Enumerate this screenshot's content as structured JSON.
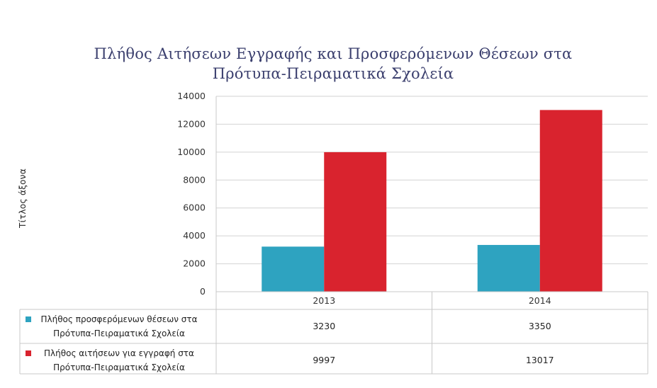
{
  "chart_data": {
    "type": "bar",
    "title_lines": [
      "Πλήθος Αιτήσεων Εγγραφής και Προσφερόμενων Θέσεων στα",
      "Πρότυπα-Πειραματικά Σχολεία"
    ],
    "ylabel": "Τίτλος άξονα",
    "xlabel": "",
    "categories": [
      "2013",
      "2014"
    ],
    "ylim": [
      0,
      14000
    ],
    "yticks": [
      "0",
      "2000",
      "4000",
      "6000",
      "8000",
      "10000",
      "12000",
      "14000"
    ],
    "grid": true,
    "legend_placement": "data-table",
    "series": [
      {
        "name_lines": [
          "Πλήθος προσφερόμενων θέσεων στα",
          "Πρότυπα-Πειραματικά Σχολεία"
        ],
        "color": "#2ea3c0",
        "values": [
          3230,
          3350
        ],
        "labels": [
          "3230",
          "3350"
        ]
      },
      {
        "name_lines": [
          "Πλήθος αιτήσεων για εγγραφή στα",
          "Πρότυπα-Πειραματικά Σχολεία"
        ],
        "color": "#d9232e",
        "values": [
          9997,
          13017
        ],
        "labels": [
          "9997",
          "13017"
        ]
      }
    ]
  }
}
